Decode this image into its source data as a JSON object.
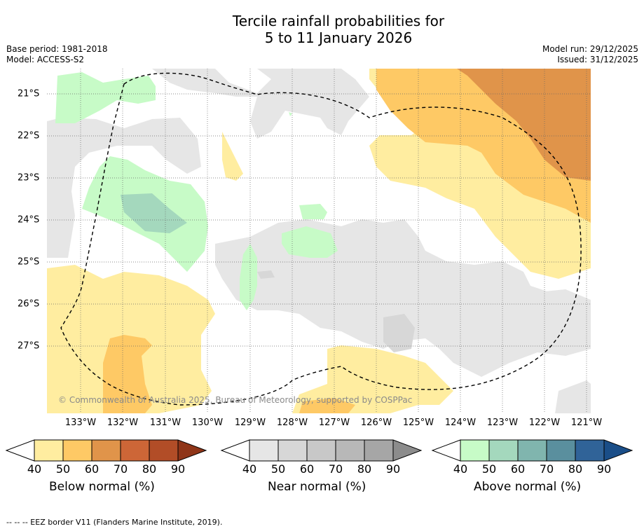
{
  "title": {
    "line1": "Tercile rainfall probabilities for",
    "line2": "5 to 11 January 2026"
  },
  "meta_left": {
    "base_period": "Base period: 1981-2018",
    "model": "Model: ACCESS-S2"
  },
  "meta_right": {
    "model_run": "Model run: 29/12/2025",
    "issued": "Issued: 31/12/2025"
  },
  "map": {
    "copyright": "© Commonwealth of Australia 2025, Bureau of Meteorology, supported by COSPPac",
    "longitude_labels": [
      "133°W",
      "132°W",
      "131°W",
      "130°W",
      "129°W",
      "128°W",
      "127°W",
      "126°W",
      "125°W",
      "124°W",
      "123°W",
      "122°W",
      "121°W"
    ],
    "latitude_labels": [
      "21°S",
      "22°S",
      "23°S",
      "24°S",
      "25°S",
      "26°S",
      "27°S"
    ]
  },
  "colorbars": [
    {
      "name": "below",
      "label": "Below normal (%)",
      "ticks": [
        "40",
        "50",
        "60",
        "70",
        "80",
        "90"
      ],
      "colors": [
        "#ffeda0",
        "#fec965",
        "#e0944a",
        "#cd6637",
        "#b24d27",
        "#8f3518"
      ]
    },
    {
      "name": "near",
      "label": "Near normal (%)",
      "ticks": [
        "40",
        "50",
        "60",
        "70",
        "80",
        "90"
      ],
      "colors": [
        "#e6e6e6",
        "#d7d7d7",
        "#c8c8c8",
        "#b8b8b8",
        "#a6a6a6",
        "#8c8c8c"
      ]
    },
    {
      "name": "above",
      "label": "Above normal (%)",
      "ticks": [
        "40",
        "50",
        "60",
        "70",
        "80",
        "90"
      ],
      "colors": [
        "#c7fbc7",
        "#a4d8bd",
        "#80b5ae",
        "#5a8f9e",
        "#306398",
        "#1a4e88"
      ]
    }
  ],
  "footnote": "--  --  -- EEZ border V11 (Flanders Marine Institute, 2019)."
}
